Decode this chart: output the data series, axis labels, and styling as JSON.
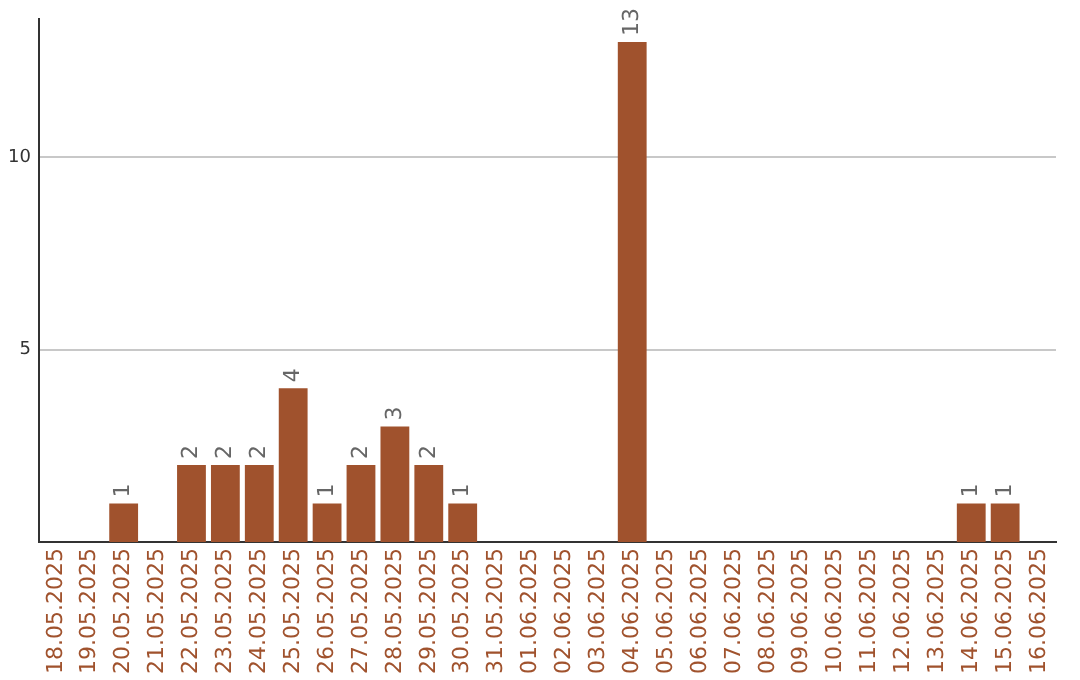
{
  "chart_data": {
    "type": "bar",
    "categories": [
      "18.05.2025",
      "19.05.2025",
      "20.05.2025",
      "21.05.2025",
      "22.05.2025",
      "23.05.2025",
      "24.05.2025",
      "25.05.2025",
      "26.05.2025",
      "27.05.2025",
      "28.05.2025",
      "29.05.2025",
      "30.05.2025",
      "31.05.2025",
      "01.06.2025",
      "02.06.2025",
      "03.06.2025",
      "04.06.2025",
      "05.06.2025",
      "06.06.2025",
      "07.06.2025",
      "08.06.2025",
      "09.06.2025",
      "10.06.2025",
      "11.06.2025",
      "12.06.2025",
      "13.06.2025",
      "14.06.2025",
      "15.06.2025",
      "16.06.2025"
    ],
    "values": [
      0,
      0,
      1,
      0,
      2,
      2,
      2,
      4,
      1,
      2,
      3,
      2,
      1,
      0,
      0,
      0,
      0,
      13,
      0,
      0,
      0,
      0,
      0,
      0,
      0,
      0,
      0,
      1,
      1,
      0
    ],
    "value_labels": [
      null,
      null,
      "1",
      null,
      "2",
      "2",
      "2",
      "4",
      "1",
      "2",
      "3",
      "2",
      "1",
      null,
      null,
      null,
      null,
      "13",
      null,
      null,
      null,
      null,
      null,
      null,
      null,
      null,
      null,
      "1",
      "1",
      null
    ],
    "color": "#a0522d",
    "ylim": [
      0,
      13.6
    ],
    "yticks": [
      5,
      10
    ],
    "grid": "y",
    "legend": false
  }
}
